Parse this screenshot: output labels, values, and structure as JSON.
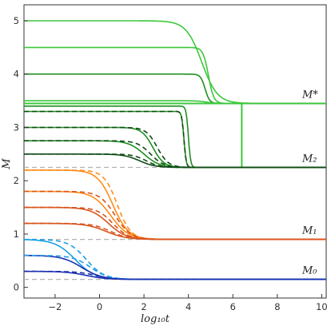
{
  "chart_data": {
    "type": "line",
    "title": "",
    "xlabel": "log₁₀t",
    "ylabel": "M",
    "xlim": [
      -3.4,
      10.2
    ],
    "ylim": [
      -0.2,
      5.3
    ],
    "xticks": [
      -2,
      0,
      2,
      4,
      6,
      8,
      10
    ],
    "yticks": [
      0,
      1,
      2,
      3,
      4,
      5
    ],
    "grid": false,
    "legend": "none",
    "colors": {
      "light_green": "#3cc83c",
      "mid_green": "#1f8f1f",
      "dark_green": "#0f4a16",
      "orange": "#ff8c1a",
      "dark_orange": "#d9541e",
      "light_blue": "#1e9ee6",
      "dark_blue": "#1a2fb0",
      "reference": "#b4b4b4"
    },
    "levels": [
      {
        "label": "M*",
        "value": 3.45
      },
      {
        "label": "M₂",
        "value": 2.25
      },
      {
        "label": "M₁",
        "value": 0.9
      },
      {
        "label": "M₀",
        "value": 0.15
      }
    ],
    "series": [
      {
        "start": 5.0,
        "end": 3.45,
        "transition_log10t": 4.6,
        "width": 0.35,
        "color": "light_green",
        "style": "solid"
      },
      {
        "start": 4.5,
        "end": 3.45,
        "transition_log10t": 4.9,
        "width": 0.12,
        "color": "light_green",
        "style": "solid"
      },
      {
        "start": 4.0,
        "end": 3.45,
        "transition_log10t": 4.75,
        "width": 0.1,
        "color": "mid_green",
        "style": "solid"
      },
      {
        "start": 3.5,
        "end": 3.45,
        "transition_log10t": 4.8,
        "width": 0.2,
        "color": "light_green",
        "style": "solid"
      },
      {
        "start": 3.45,
        "end": 2.25,
        "transition_log10t": 6.4,
        "width": 0.0,
        "color": "light_green",
        "style": "solid"
      },
      {
        "start": 3.4,
        "end": 2.25,
        "transition_log10t": 4.0,
        "width": 0.05,
        "color": "mid_green",
        "style": "solid"
      },
      {
        "start": 3.3,
        "end": 2.25,
        "transition_log10t": 3.8,
        "width": 0.05,
        "color": "mid_green",
        "style": "solid"
      },
      {
        "start": 3.3,
        "end": 2.25,
        "transition_log10t": 3.8,
        "width": 0.05,
        "color": "dark_green",
        "style": "dashed"
      },
      {
        "start": 3.0,
        "end": 2.25,
        "transition_log10t": 2.4,
        "width": 0.25,
        "color": "mid_green",
        "style": "solid"
      },
      {
        "start": 3.0,
        "end": 2.25,
        "transition_log10t": 2.6,
        "width": 0.25,
        "color": "dark_green",
        "style": "dashed"
      },
      {
        "start": 2.75,
        "end": 2.25,
        "transition_log10t": 2.0,
        "width": 0.35,
        "color": "mid_green",
        "style": "solid"
      },
      {
        "start": 2.75,
        "end": 2.25,
        "transition_log10t": 2.3,
        "width": 0.3,
        "color": "dark_green",
        "style": "dashed"
      },
      {
        "start": 2.5,
        "end": 2.25,
        "transition_log10t": 1.8,
        "width": 0.35,
        "color": "dark_green",
        "style": "solid"
      },
      {
        "start": 2.5,
        "end": 2.25,
        "transition_log10t": 2.1,
        "width": 0.3,
        "color": "dark_green",
        "style": "dashed"
      },
      {
        "start": 2.2,
        "end": 0.9,
        "transition_log10t": 0.6,
        "width": 0.35,
        "color": "orange",
        "style": "solid"
      },
      {
        "start": 2.2,
        "end": 0.9,
        "transition_log10t": 0.8,
        "width": 0.3,
        "color": "orange",
        "style": "dashed"
      },
      {
        "start": 1.8,
        "end": 0.9,
        "transition_log10t": 0.5,
        "width": 0.4,
        "color": "orange",
        "style": "solid"
      },
      {
        "start": 1.8,
        "end": 0.9,
        "transition_log10t": 0.7,
        "width": 0.35,
        "color": "dark_orange",
        "style": "dashed"
      },
      {
        "start": 1.5,
        "end": 0.9,
        "transition_log10t": 0.4,
        "width": 0.4,
        "color": "dark_orange",
        "style": "solid"
      },
      {
        "start": 1.5,
        "end": 0.9,
        "transition_log10t": 0.6,
        "width": 0.35,
        "color": "dark_orange",
        "style": "dashed"
      },
      {
        "start": 1.2,
        "end": 0.9,
        "transition_log10t": 0.3,
        "width": 0.45,
        "color": "dark_orange",
        "style": "solid"
      },
      {
        "start": 1.2,
        "end": 0.9,
        "transition_log10t": 0.5,
        "width": 0.4,
        "color": "dark_orange",
        "style": "dashed"
      },
      {
        "start": 0.9,
        "end": 0.15,
        "transition_log10t": -1.1,
        "width": 0.45,
        "color": "light_blue",
        "style": "solid"
      },
      {
        "start": 0.9,
        "end": 0.15,
        "transition_log10t": -0.6,
        "width": 0.4,
        "color": "light_blue",
        "style": "dashed"
      },
      {
        "start": 0.6,
        "end": 0.15,
        "transition_log10t": -0.8,
        "width": 0.45,
        "color": "dark_blue",
        "style": "solid"
      },
      {
        "start": 0.6,
        "end": 0.15,
        "transition_log10t": -0.4,
        "width": 0.4,
        "color": "light_blue",
        "style": "dashed"
      },
      {
        "start": 0.3,
        "end": 0.15,
        "transition_log10t": -0.6,
        "width": 0.45,
        "color": "dark_blue",
        "style": "solid"
      },
      {
        "start": 0.3,
        "end": 0.15,
        "transition_log10t": -0.2,
        "width": 0.4,
        "color": "dark_blue",
        "style": "dashed"
      }
    ]
  }
}
